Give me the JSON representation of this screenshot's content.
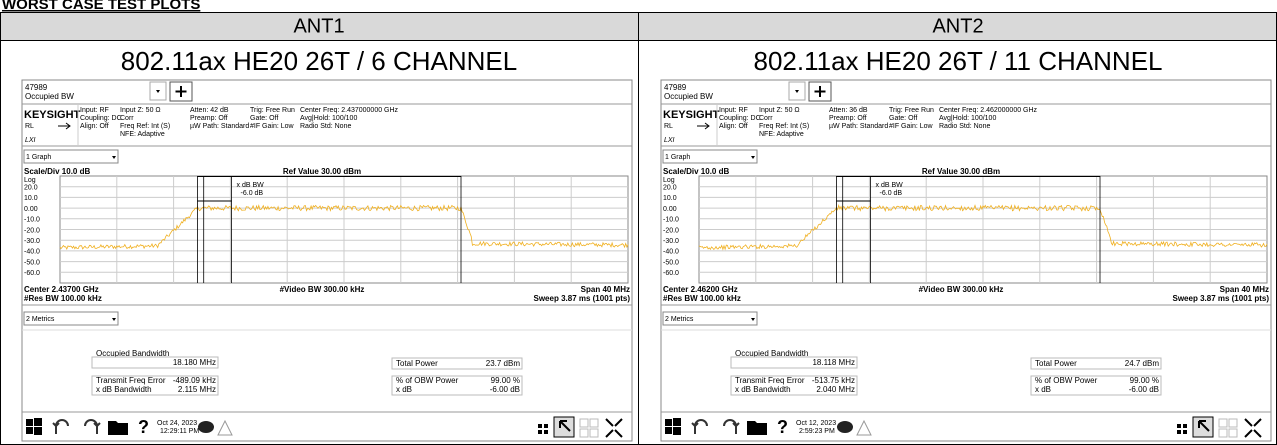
{
  "page_title": "WORST CASE TEST PLOTS",
  "panels": [
    {
      "column": "ANT1",
      "heading": "802.11ax HE20 26T / 6 CHANNEL",
      "id": "47989",
      "measurement": "Occupied BW",
      "brand": "KEYSIGHT",
      "rl": "RL",
      "lxi": "LXI",
      "settings": [
        [
          "Input: RF",
          "Coupling: DC",
          "Align: Off"
        ],
        [
          "Input Z: 50 Ω",
          "Corr",
          "Freq Ref: Int (S)",
          "NFE: Adaptive"
        ],
        [
          "Atten: 42 dB",
          "Preamp: Off",
          "µW Path: Standard"
        ],
        [
          "Trig: Free Run",
          "Gate: Off",
          "#IF Gain: Low"
        ],
        [
          "Center Freq: 2.437000000 GHz",
          "Avg|Hold: 100/100",
          "Radio Std: None"
        ]
      ],
      "graph_menu": "1 Graph",
      "scale": "Scale/Div 10.0 dB",
      "ref": "Ref Value 30.00 dBm",
      "log": "Log",
      "y_labels": [
        "20.0",
        "10.0",
        "0.00",
        "-10.0",
        "-20.0",
        "-30.0",
        "-40.0",
        "-50.0",
        "-60.0"
      ],
      "marker_text": [
        "x dB BW",
        "-6.0 dB"
      ],
      "center": "Center 2.43700 GHz",
      "vbw": "#Video BW 300.00 kHz",
      "span": "Span 40 MHz",
      "rbw": "#Res BW 100.00 kHz",
      "sweep": "Sweep 3.87 ms (1001 pts)",
      "metrics_menu": "2 Metrics",
      "metrics": {
        "obw_label": "Occupied Bandwidth",
        "obw": "18.180 MHz",
        "left": [
          [
            "Transmit Freq Error",
            "-489.09 kHz"
          ],
          [
            "x dB Bandwidth",
            "2.115 MHz"
          ]
        ],
        "right": [
          [
            "Total Power",
            "23.7 dBm"
          ],
          [
            "% of OBW Power",
            "99.00 %"
          ],
          [
            "x dB",
            "-6.00 dB"
          ]
        ]
      },
      "help_icon": "?",
      "date": "Oct 24, 2023",
      "time": "12:29:11 PM"
    },
    {
      "column": "ANT2",
      "heading": "802.11ax HE20 26T / 11 CHANNEL",
      "id": "47989",
      "measurement": "Occupied BW",
      "brand": "KEYSIGHT",
      "rl": "RL",
      "lxi": "LXI",
      "settings": [
        [
          "Input: RF",
          "Coupling: DC",
          "Align: Off"
        ],
        [
          "Input Z: 50 Ω",
          "Corr",
          "Freq Ref: Int (S)",
          "NFE: Adaptive"
        ],
        [
          "Atten: 36 dB",
          "Preamp: Off",
          "µW Path: Standard"
        ],
        [
          "Trig: Free Run",
          "Gate: Off",
          "#IF Gain: Low"
        ],
        [
          "Center Freq: 2.462000000 GHz",
          "Avg|Hold: 100/100",
          "Radio Std: None"
        ]
      ],
      "graph_menu": "1 Graph",
      "scale": "Scale/Div 10.0 dB",
      "ref": "Ref Value 30.00 dBm",
      "log": "Log",
      "y_labels": [
        "20.0",
        "10.0",
        "0.00",
        "-10.0",
        "-20.0",
        "-30.0",
        "-40.0",
        "-50.0",
        "-60.0"
      ],
      "marker_text": [
        "x dB BW",
        "-6.0 dB"
      ],
      "center": "Center 2.46200 GHz",
      "vbw": "#Video BW 300.00 kHz",
      "span": "Span 40 MHz",
      "rbw": "#Res BW 100.00 kHz",
      "sweep": "Sweep 3.87 ms (1001 pts)",
      "metrics_menu": "2 Metrics",
      "metrics": {
        "obw_label": "Occupied Bandwidth",
        "obw": "18.118 MHz",
        "left": [
          [
            "Transmit Freq Error",
            "-513.75 kHz"
          ],
          [
            "x dB Bandwidth",
            "2.040 MHz"
          ]
        ],
        "right": [
          [
            "Total Power",
            "24.7 dBm"
          ],
          [
            "% of OBW Power",
            "99.00 %"
          ],
          [
            "x dB",
            "-6.00 dB"
          ]
        ]
      },
      "help_icon": "?",
      "date": "Oct 12, 2023",
      "time": "2:59:23 PM"
    }
  ]
}
